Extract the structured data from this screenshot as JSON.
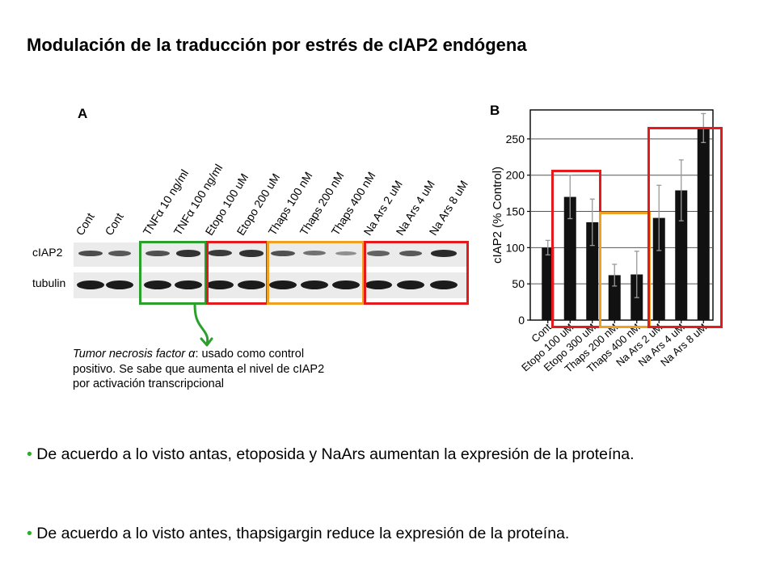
{
  "slide": {
    "title": "Modulación de la traducción por estrés de cIAP2 endógena"
  },
  "panel_a": {
    "letter": "A",
    "lanes": [
      "Cont",
      "Cont",
      "TNFα 10 ng/ml",
      "TNFα 100 ng/ml",
      "Etopo 100 uM",
      "Etopo 200 uM",
      "Thaps 100 nM",
      "Thaps 200 nM",
      "Thaps 400 nM",
      "Na Ars 2 uM",
      "Na Ars 4 uM",
      "Na Ars 8 uM"
    ],
    "rows": [
      "cIAP2",
      "tubulin"
    ],
    "band_intensity_ciap2": [
      0.7,
      0.6,
      0.65,
      0.85,
      0.8,
      0.85,
      0.65,
      0.45,
      0.25,
      0.55,
      0.6,
      0.9
    ],
    "box_colors": {
      "tnf": "#2ca02c",
      "etopo": "#e41a1c",
      "thaps": "#f0a020",
      "naars": "#e41a1c"
    },
    "arrow_color": "#2ca02c"
  },
  "caption": {
    "italic": "Tumor necrosis factor α",
    "rest": ": usado como control positivo. Se sabe que aumenta el nivel de cIAP2 por activación transcripcional"
  },
  "panel_b": {
    "letter": "B",
    "box_colors": {
      "etopo": "#e41a1c",
      "thaps": "#f0a020",
      "naars": "#e41a1c"
    }
  },
  "chart_data": {
    "type": "bar",
    "categories": [
      "Cont",
      "Etopo 100 uM",
      "Etopo 300 uM",
      "Thaps 200 nM",
      "Thaps 400 nM",
      "Na Ars 2 uM",
      "Na Ars 4 uM",
      "Na Ars 8 uM"
    ],
    "values": [
      100,
      170,
      135,
      62,
      63,
      141,
      179,
      265
    ],
    "errors": [
      10,
      30,
      32,
      15,
      32,
      45,
      42,
      20
    ],
    "ylabel": "cIAP2 (% Control)",
    "ylim": [
      0,
      290
    ],
    "yticks": [
      0,
      50,
      100,
      150,
      200,
      250
    ],
    "grid": "horizontal",
    "bar_color": "#111111"
  },
  "bullets": [
    "De acuerdo a lo visto antas, etoposida y NaArs aumentan la expresión de la proteína.",
    "De acuerdo a lo visto antes, thapsigargin reduce la expresión de la proteína."
  ],
  "bullet_marker": "•"
}
